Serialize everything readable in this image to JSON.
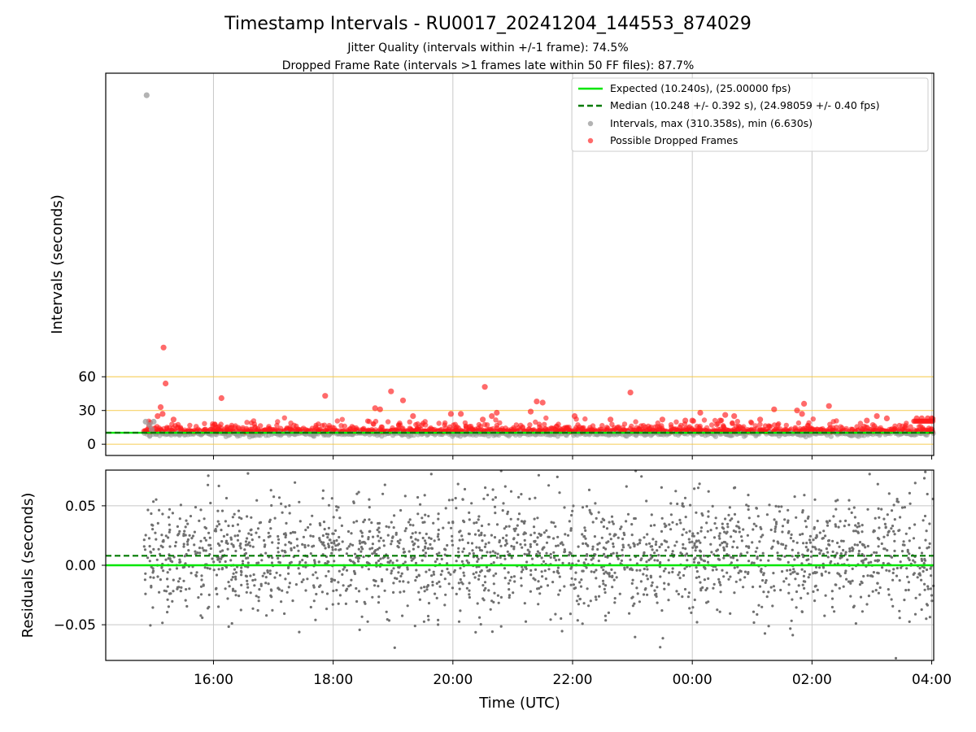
{
  "chart_data": [
    {
      "type": "scatter",
      "panel": "intervals",
      "title": "Timestamp Intervals - RU0017_20241204_144553_874029",
      "subtitle": [
        "Jitter Quality (intervals within +/-1 frame): 74.5%",
        "Dropped Frame Rate (intervals >1 frames late within 50 FF files): 87.7%"
      ],
      "ylabel": "Intervals (seconds)",
      "xlim": [
        "14:12",
        "04:02"
      ],
      "ylim": [
        -10,
        330
      ],
      "yticks": [
        0,
        30,
        60
      ],
      "reference_lines": [
        0,
        30,
        60
      ],
      "reference_line_color": "#f5c842",
      "grid_x": true,
      "legend_position": "top-right",
      "legend": [
        "Expected (10.240s), (25.00000 fps)",
        "Median (10.248 +/- 0.392 s), (24.98059 +/- 0.40 fps)",
        "Intervals, max (310.358s), min (6.630s)",
        "Possible Dropped Frames"
      ],
      "expected": 10.24,
      "median": 10.248,
      "max_interval": 310.358,
      "min_interval": 6.63,
      "time_range": [
        "14:50",
        "04:02"
      ],
      "colors": {
        "expected": "#00e600",
        "median": "#007a00",
        "intervals": "#9a9a9a",
        "dropped": "#ff1a1a"
      },
      "dropped_outliers": [
        {
          "t": "15:10",
          "y": 86
        },
        {
          "t": "15:12",
          "y": 54
        },
        {
          "t": "15:07",
          "y": 33
        },
        {
          "t": "15:09",
          "y": 27
        },
        {
          "t": "15:04",
          "y": 25
        },
        {
          "t": "15:20",
          "y": 22
        },
        {
          "t": "16:08",
          "y": 41
        },
        {
          "t": "17:52",
          "y": 43
        },
        {
          "t": "18:42",
          "y": 32
        },
        {
          "t": "18:47",
          "y": 31
        },
        {
          "t": "18:58",
          "y": 47
        },
        {
          "t": "19:10",
          "y": 39
        },
        {
          "t": "19:20",
          "y": 25
        },
        {
          "t": "19:58",
          "y": 27
        },
        {
          "t": "20:08",
          "y": 27
        },
        {
          "t": "20:30",
          "y": 22
        },
        {
          "t": "20:32",
          "y": 51
        },
        {
          "t": "20:39",
          "y": 25
        },
        {
          "t": "20:44",
          "y": 28
        },
        {
          "t": "21:18",
          "y": 29
        },
        {
          "t": "21:24",
          "y": 38
        },
        {
          "t": "21:30",
          "y": 37
        },
        {
          "t": "22:02",
          "y": 25
        },
        {
          "t": "22:38",
          "y": 22
        },
        {
          "t": "22:58",
          "y": 46
        },
        {
          "t": "23:30",
          "y": 22
        },
        {
          "t": "23:53",
          "y": 21
        },
        {
          "t": "00:00",
          "y": 21
        },
        {
          "t": "00:08",
          "y": 28
        },
        {
          "t": "00:28",
          "y": 21
        },
        {
          "t": "00:33",
          "y": 26
        },
        {
          "t": "00:42",
          "y": 25
        },
        {
          "t": "01:08",
          "y": 22
        },
        {
          "t": "01:22",
          "y": 31
        },
        {
          "t": "01:45",
          "y": 30
        },
        {
          "t": "01:52",
          "y": 36
        },
        {
          "t": "01:50",
          "y": 27
        },
        {
          "t": "02:17",
          "y": 34
        },
        {
          "t": "02:55",
          "y": 21
        },
        {
          "t": "03:05",
          "y": 25
        },
        {
          "t": "03:15",
          "y": 23
        },
        {
          "t": "03:45",
          "y": 23
        },
        {
          "t": "03:50",
          "y": 23
        },
        {
          "t": "03:56",
          "y": 23
        },
        {
          "t": "04:00",
          "y": 23
        }
      ],
      "interval_outliers": [
        {
          "t": "14:53",
          "y": 310.4
        },
        {
          "t": "14:52",
          "y": 20
        },
        {
          "t": "14:56",
          "y": 17
        },
        {
          "t": "15:00",
          "y": 20
        },
        {
          "t": "14:58",
          "y": 13
        }
      ]
    },
    {
      "type": "scatter",
      "panel": "residuals",
      "ylabel": "Residuals (seconds)",
      "xlabel": "Time (UTC)",
      "xticks": [
        "16:00",
        "18:00",
        "20:00",
        "22:00",
        "00:00",
        "02:00",
        "04:00"
      ],
      "yticks": [
        -0.05,
        0.0,
        0.05
      ],
      "ytick_labels": [
        "−0.05",
        "0.00",
        "0.05"
      ],
      "ylim": [
        -0.08,
        0.08
      ],
      "expected_residual": 0.0,
      "median_residual": 0.008,
      "residual_spread_std": 0.025,
      "grid": true,
      "point_color": "#707070"
    }
  ]
}
